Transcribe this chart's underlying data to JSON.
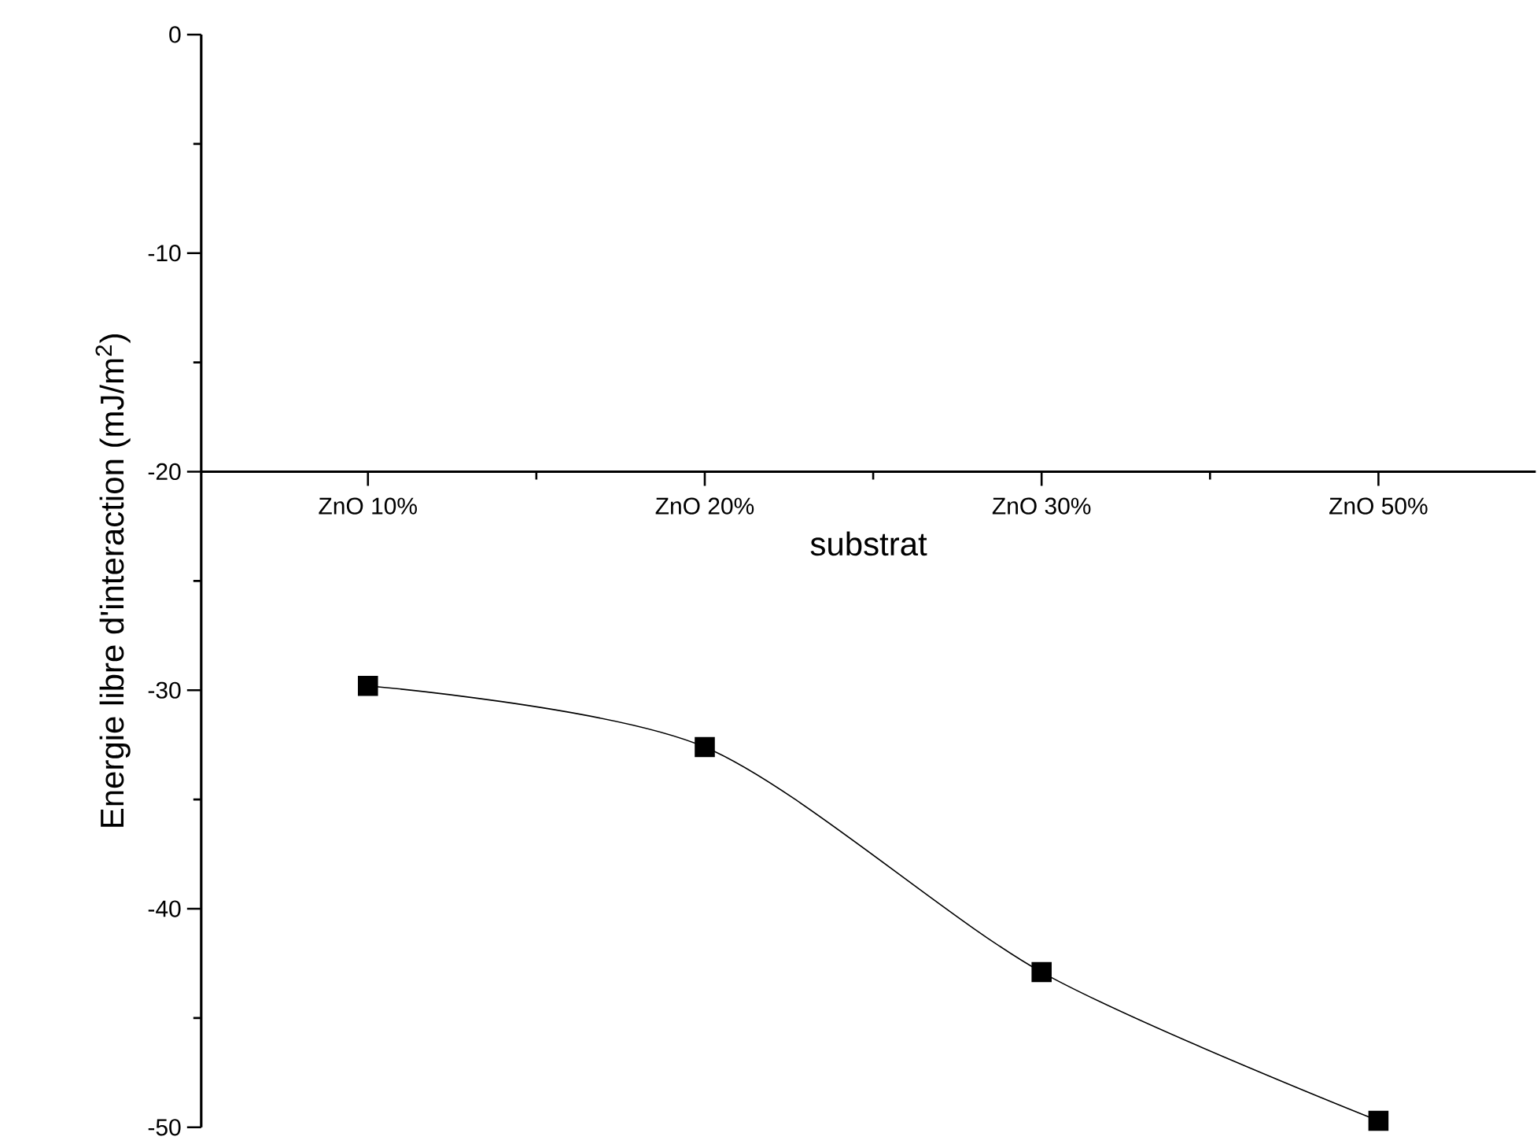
{
  "chart_data": {
    "type": "line",
    "xlabel": "substrat",
    "ylabel": "Energie libre d'interaction (mJ/m$^{2}$)",
    "categories": [
      "ZnO 10%",
      "ZnO 20%",
      "ZnO 30%",
      "ZnO 50%"
    ],
    "series": [
      {
        "color": "#000000",
        "values": [
          -29.8,
          -32.6,
          -42.9,
          -49.7
        ]
      }
    ],
    "ylim": [
      -50,
      0
    ],
    "yticks": [
      -50,
      -40,
      -30,
      -20,
      -10,
      0
    ],
    "marker": "square",
    "line_style": "solid"
  }
}
